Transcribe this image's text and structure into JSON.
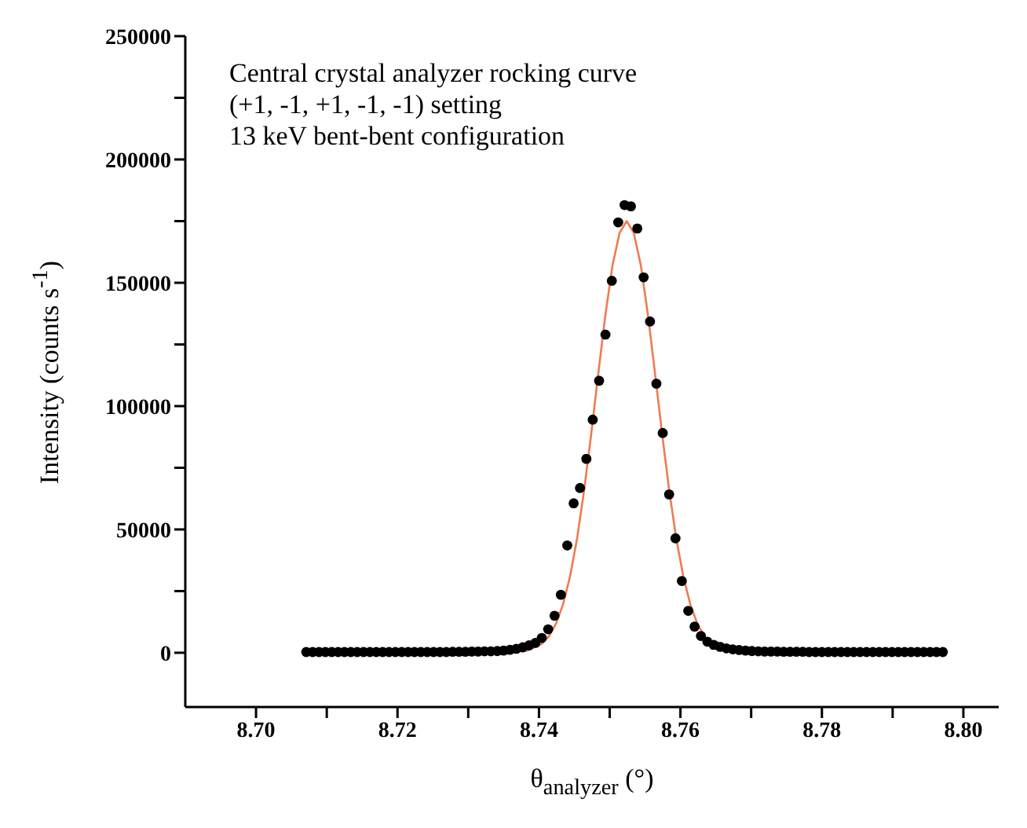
{
  "chart_data": {
    "type": "scatter",
    "xlabel": "θ$_{analyzer}$ (°)",
    "ylabel": "Intensity (counts s$^{-1}$)",
    "annotations": [
      "Central crystal analyzer rocking curve",
      "(+1, -1, +1, -1, -1) setting",
      "13 keV bent-bent configuration"
    ],
    "xlim": [
      8.69,
      8.805
    ],
    "ylim": [
      -22000,
      250000
    ],
    "xticks": [
      {
        "value": 8.7,
        "label": "8.70"
      },
      {
        "value": 8.71,
        "label": null
      },
      {
        "value": 8.72,
        "label": "8.72"
      },
      {
        "value": 8.73,
        "label": null
      },
      {
        "value": 8.74,
        "label": "8.74"
      },
      {
        "value": 8.75,
        "label": null
      },
      {
        "value": 8.76,
        "label": "8.76"
      },
      {
        "value": 8.77,
        "label": null
      },
      {
        "value": 8.78,
        "label": "8.78"
      },
      {
        "value": 8.79,
        "label": null
      },
      {
        "value": 8.8,
        "label": "8.80"
      }
    ],
    "yticks": [
      0,
      {
        "value": 25000,
        "label": null
      },
      50000,
      {
        "value": 75000,
        "label": null
      },
      100000,
      {
        "value": 125000,
        "label": null
      },
      150000,
      {
        "value": 175000,
        "label": null
      },
      200000,
      {
        "value": 225000,
        "label": null
      },
      250000
    ],
    "series": [
      {
        "marker": "circle",
        "color": "#000000",
        "x": [
          8.7071,
          8.708,
          8.7089,
          8.7098,
          8.7107,
          8.7116,
          8.7125,
          8.7134,
          8.7143,
          8.7152,
          8.7161,
          8.717,
          8.7179,
          8.7188,
          8.7197,
          8.7206,
          8.7215,
          8.7224,
          8.7233,
          8.7242,
          8.7251,
          8.726,
          8.7269,
          8.7278,
          8.7287,
          8.7296,
          8.7305,
          8.7314,
          8.7323,
          8.7332,
          8.7341,
          8.735,
          8.7359,
          8.7368,
          8.7377,
          8.7386,
          8.7395,
          8.7404,
          8.7413,
          8.7422,
          8.7431,
          8.744,
          8.7449,
          8.7458,
          8.7467,
          8.7476,
          8.7485,
          8.7494,
          8.7503,
          8.7512,
          8.7521,
          8.753,
          8.7539,
          8.7548,
          8.7557,
          8.7566,
          8.7575,
          8.7584,
          8.7593,
          8.7602,
          8.7611,
          8.762,
          8.7629,
          8.7638,
          8.7647,
          8.7656,
          8.7665,
          8.7674,
          8.7683,
          8.7692,
          8.7701,
          8.771,
          8.7719,
          8.7728,
          8.7737,
          8.7746,
          8.7755,
          8.7764,
          8.7773,
          8.7782,
          8.7791,
          8.78,
          8.7809,
          8.7818,
          8.7827,
          8.7836,
          8.7845,
          8.7854,
          8.7863,
          8.7872,
          8.7881,
          8.789,
          8.7899,
          8.7908,
          8.7917,
          8.7926,
          8.7935,
          8.7944,
          8.7953,
          8.7962,
          8.7971
        ],
        "values": [
          300,
          300,
          300,
          300,
          300,
          300,
          300,
          300,
          300,
          300,
          300,
          300,
          300,
          300,
          300,
          300,
          300,
          300,
          300,
          300,
          300,
          300,
          300,
          400,
          400,
          400,
          500,
          500,
          600,
          600,
          700,
          900,
          1200,
          1600,
          2200,
          3000,
          4000,
          6000,
          9500,
          15000,
          23500,
          43500,
          60600,
          66800,
          78600,
          94500,
          110300,
          129000,
          150800,
          174500,
          181500,
          181000,
          172000,
          152200,
          134300,
          109100,
          89100,
          64200,
          46400,
          29100,
          17000,
          10600,
          6800,
          4500,
          3200,
          2400,
          1800,
          1400,
          1100,
          900,
          700,
          600,
          500,
          500,
          500,
          400,
          400,
          400,
          400,
          300,
          300,
          300,
          300,
          300,
          300,
          300,
          300,
          300,
          300,
          300,
          300,
          300,
          300,
          300,
          300,
          300,
          300,
          300,
          300,
          300,
          300
        ]
      },
      {
        "type": "line",
        "marker": "none",
        "color": "#f07a50",
        "x": [
          8.735,
          8.7384,
          8.7404,
          8.7414,
          8.7424,
          8.7434,
          8.7444,
          8.7454,
          8.7464,
          8.7474,
          8.7484,
          8.7494,
          8.7504,
          8.7514,
          8.7524,
          8.7534,
          8.7544,
          8.7554,
          8.7564,
          8.7574,
          8.7584,
          8.7594,
          8.7604,
          8.7614,
          8.7624,
          8.7634,
          8.7644
        ],
        "values": [
          100,
          900,
          3600,
          6600,
          11700,
          19600,
          31000,
          46500,
          66100,
          89000,
          113500,
          137200,
          157100,
          170300,
          175000,
          170300,
          157100,
          137200,
          113500,
          89000,
          66100,
          46500,
          31000,
          19600,
          11700,
          6600,
          3600
        ]
      }
    ]
  }
}
